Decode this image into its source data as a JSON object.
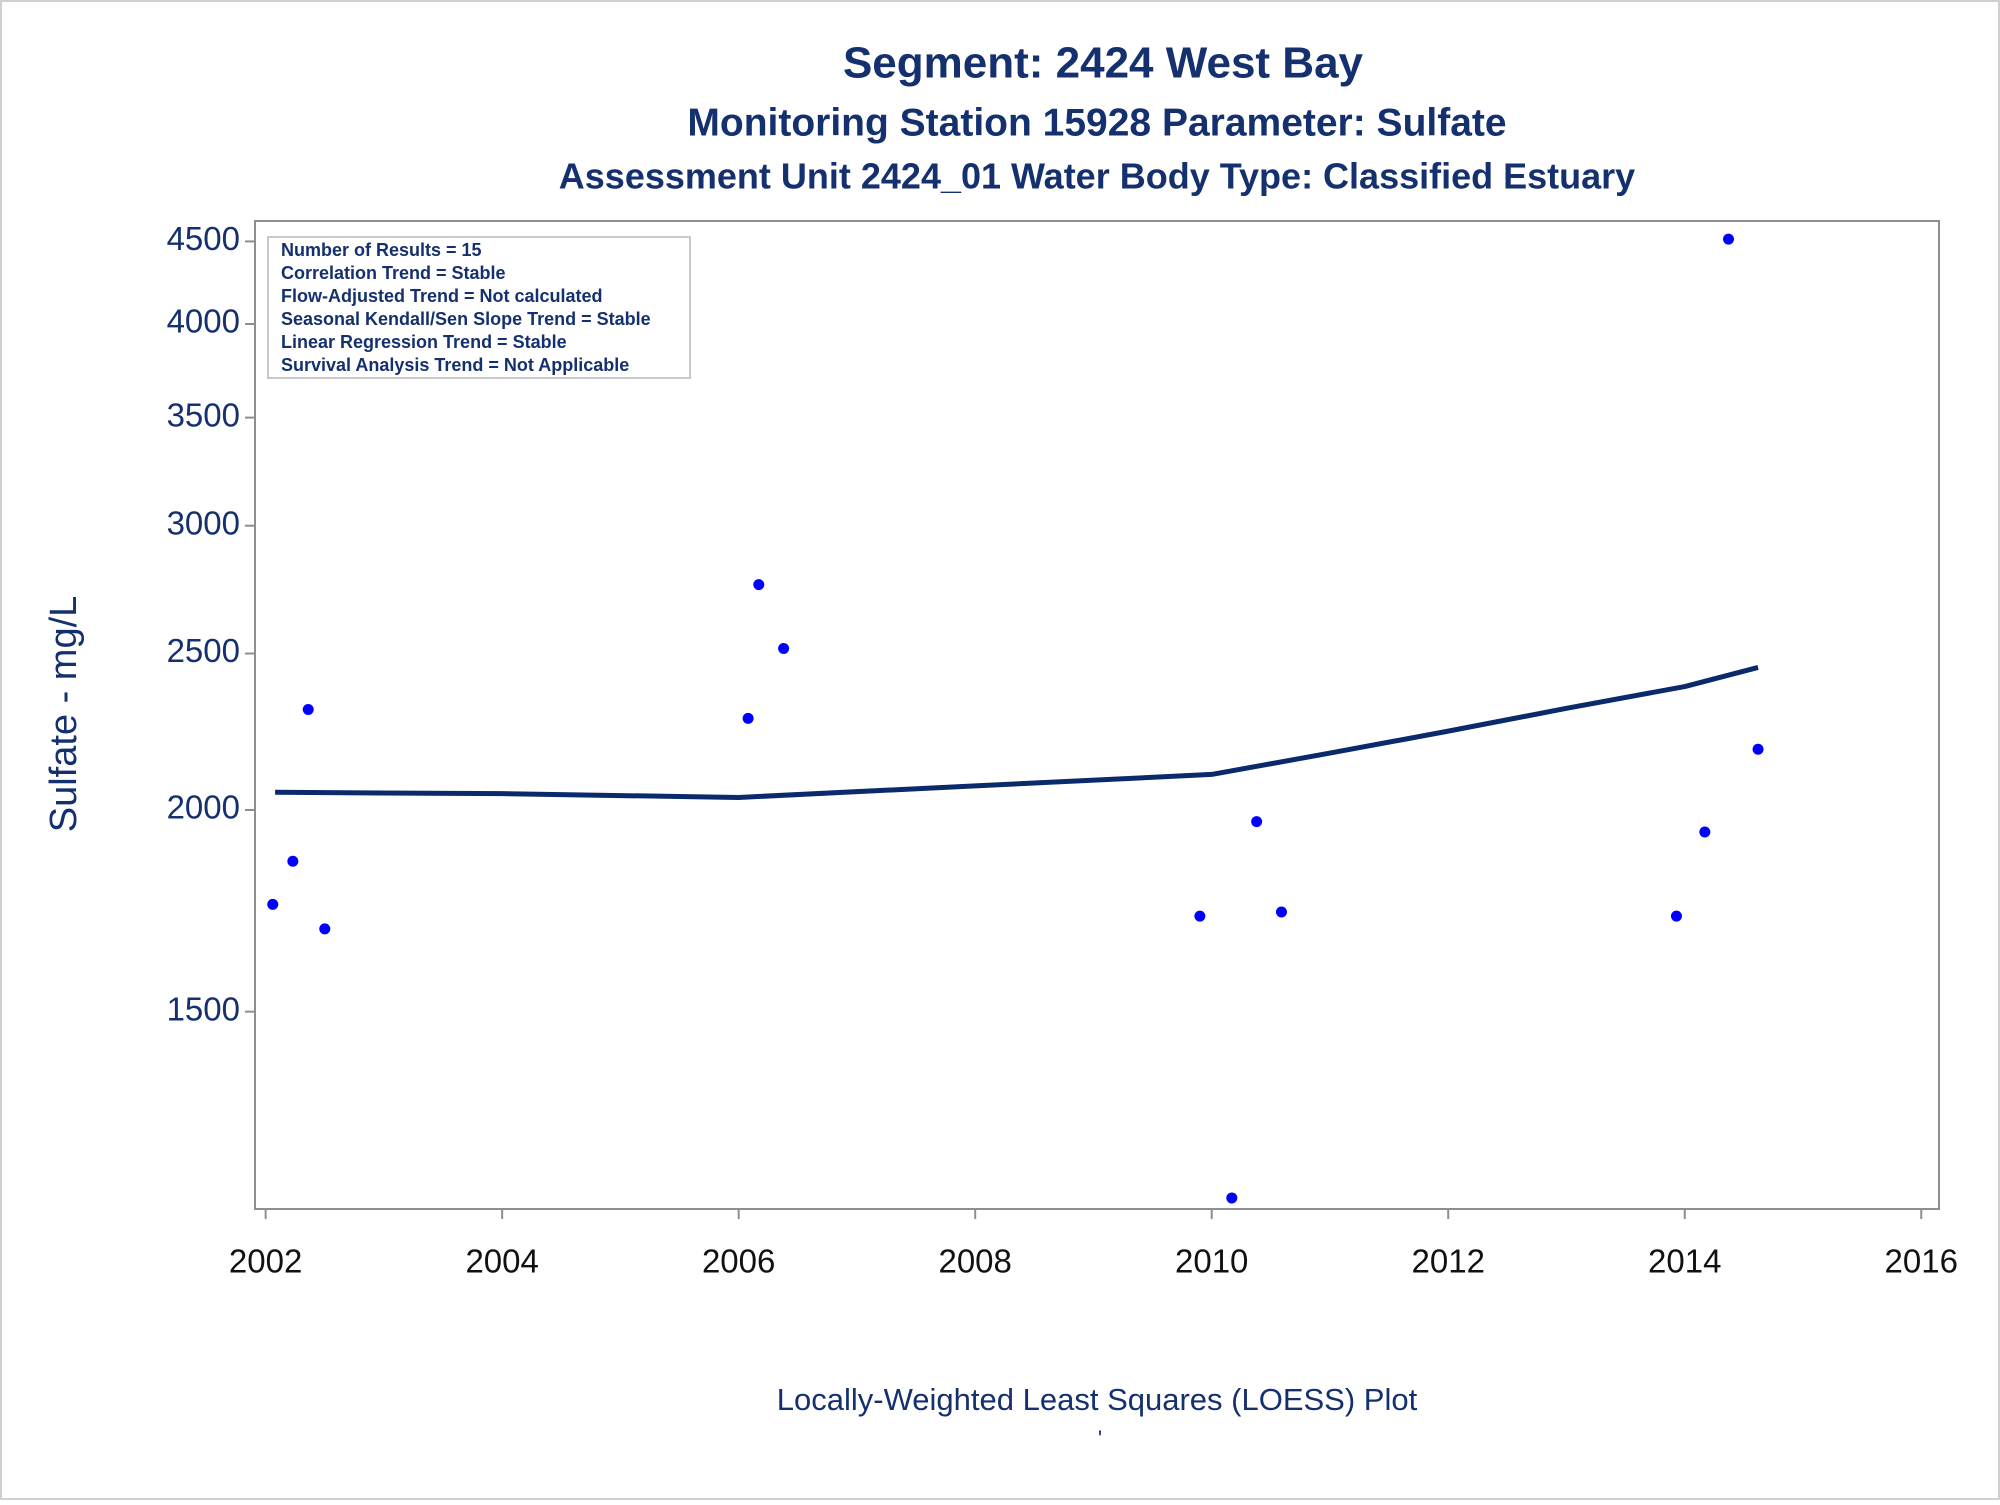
{
  "chart_data": {
    "type": "scatter",
    "title": "Segment: 2424  West Bay",
    "subtitle": "Monitoring Station 15928 Parameter: Sulfate",
    "subtitle2": "Assessment Unit 2424_01    Water Body Type: Classified Estuary",
    "y_label": "Sulfate - mg/L",
    "footnote": "Locally-Weighted Least Squares (LOESS) Plot",
    "footnote2": "'",
    "stats_box": [
      "Number of Results = 15",
      "Correlation Trend = Stable",
      "Flow-Adjusted Trend = Not calculated",
      "Seasonal Kendall/Sen Slope Trend = Stable",
      "Linear Regression Trend = Stable",
      "Survival Analysis Trend = Not Applicable"
    ],
    "y_log": true,
    "xlim": [
      2001.91,
      2016.15
    ],
    "ylim": [
      1132,
      4633
    ],
    "xticks": [
      2002,
      2004,
      2006,
      2008,
      2010,
      2012,
      2014,
      2016
    ],
    "yticks": [
      1500,
      2000,
      2500,
      3000,
      3500,
      4000,
      4500
    ],
    "series": [
      {
        "type": "scatter",
        "color": "#0000ff",
        "x": [
          2002.06,
          2002.23,
          2002.36,
          2002.5,
          2006.08,
          2006.17,
          2006.38,
          2009.9,
          2010.17,
          2010.38,
          2010.59,
          2013.93,
          2014.17,
          2014.37,
          2014.62
        ],
        "values": [
          1748,
          1859,
          2308,
          1688,
          2279,
          2758,
          2518,
          1719,
          1150,
          1967,
          1729,
          1719,
          1938,
          4515,
          2181
        ]
      },
      {
        "type": "line",
        "color": "#0b2a6b",
        "x": [
          2002.08,
          2004,
          2006,
          2008,
          2010,
          2011,
          2012,
          2013,
          2014,
          2014.62
        ],
        "values": [
          2051,
          2047,
          2036,
          2070,
          2104,
          2169,
          2238,
          2312,
          2385,
          2451
        ]
      }
    ]
  }
}
